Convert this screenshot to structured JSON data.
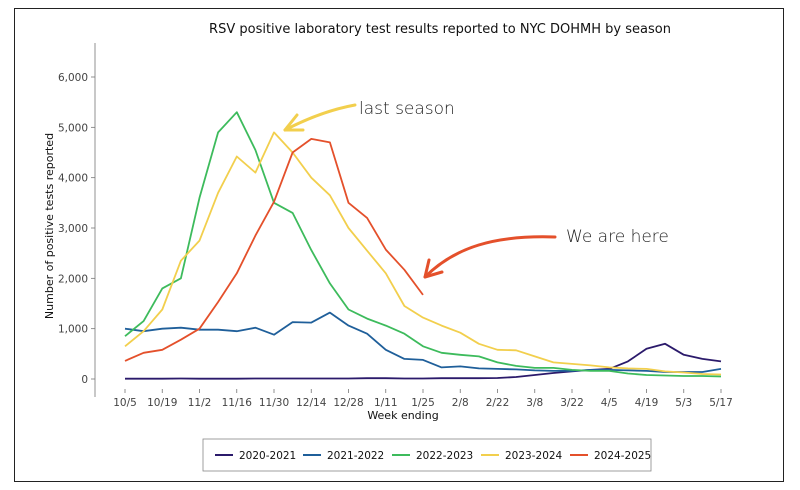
{
  "chart_data": {
    "type": "line",
    "title": "RSV positive laboratory test results reported to NYC DOHMH by season",
    "xlabel": "Week ending",
    "ylabel": "Number of positive tests reported",
    "ylim": [
      0,
      6000
    ],
    "yticks": [
      0,
      1000,
      2000,
      3000,
      4000,
      5000,
      6000
    ],
    "ytick_labels": [
      "0",
      "1,000",
      "2,000",
      "3,000",
      "4,000",
      "5,000",
      "6,000"
    ],
    "weeks": [
      "10/5",
      "10/12",
      "10/19",
      "10/26",
      "11/2",
      "11/9",
      "11/16",
      "11/23",
      "11/30",
      "12/7",
      "12/14",
      "12/21",
      "12/28",
      "1/4",
      "1/11",
      "1/18",
      "1/25",
      "2/1",
      "2/8",
      "2/15",
      "2/22",
      "3/1",
      "3/8",
      "3/15",
      "3/22",
      "3/29",
      "4/5",
      "4/12",
      "4/19",
      "4/26",
      "5/3",
      "5/10",
      "5/17"
    ],
    "xtick_labels": [
      "10/5",
      "10/19",
      "11/2",
      "11/16",
      "11/30",
      "12/14",
      "12/28",
      "1/11",
      "1/25",
      "2/8",
      "2/22",
      "3/8",
      "3/22",
      "4/5",
      "4/19",
      "5/3",
      "5/17"
    ],
    "grid": false,
    "legend_position": "bottom",
    "series": [
      {
        "name": "2020-2021",
        "color": "#2b1a6b",
        "values": [
          5,
          5,
          5,
          10,
          5,
          5,
          5,
          10,
          10,
          10,
          10,
          10,
          10,
          15,
          15,
          10,
          10,
          15,
          15,
          15,
          20,
          40,
          80,
          120,
          150,
          180,
          200,
          350,
          600,
          700,
          480,
          400,
          350
        ]
      },
      {
        "name": "2021-2022",
        "color": "#1f5f9a",
        "values": [
          1000,
          950,
          1000,
          1020,
          980,
          980,
          950,
          1020,
          880,
          1130,
          1120,
          1320,
          1060,
          900,
          580,
          400,
          380,
          230,
          250,
          210,
          200,
          190,
          170,
          160,
          160,
          180,
          180,
          170,
          160,
          140,
          140,
          140,
          200
        ]
      },
      {
        "name": "2022-2023",
        "color": "#3dbb5c",
        "values": [
          850,
          1150,
          1800,
          2000,
          3600,
          4900,
          5300,
          4550,
          3500,
          3300,
          2560,
          1900,
          1380,
          1200,
          1060,
          900,
          650,
          520,
          480,
          450,
          330,
          260,
          220,
          220,
          180,
          160,
          160,
          110,
          80,
          70,
          60,
          60,
          50
        ]
      },
      {
        "name": "2023-2024",
        "color": "#f2cf4d",
        "values": [
          650,
          950,
          1380,
          2350,
          2750,
          3700,
          4420,
          4100,
          4900,
          4500,
          4000,
          3650,
          3000,
          2550,
          2100,
          1450,
          1220,
          1060,
          920,
          700,
          580,
          570,
          450,
          330,
          300,
          270,
          230,
          210,
          200,
          150,
          130,
          100,
          90
        ]
      },
      {
        "name": "2024-2025",
        "color": "#e4502b",
        "values": [
          360,
          520,
          580,
          780,
          1000,
          1530,
          2100,
          2850,
          3520,
          4500,
          4770,
          4700,
          3500,
          3200,
          2570,
          2170,
          1670
        ]
      }
    ],
    "annotations": [
      {
        "text": "last season"
      },
      {
        "text": "We are here"
      }
    ]
  }
}
